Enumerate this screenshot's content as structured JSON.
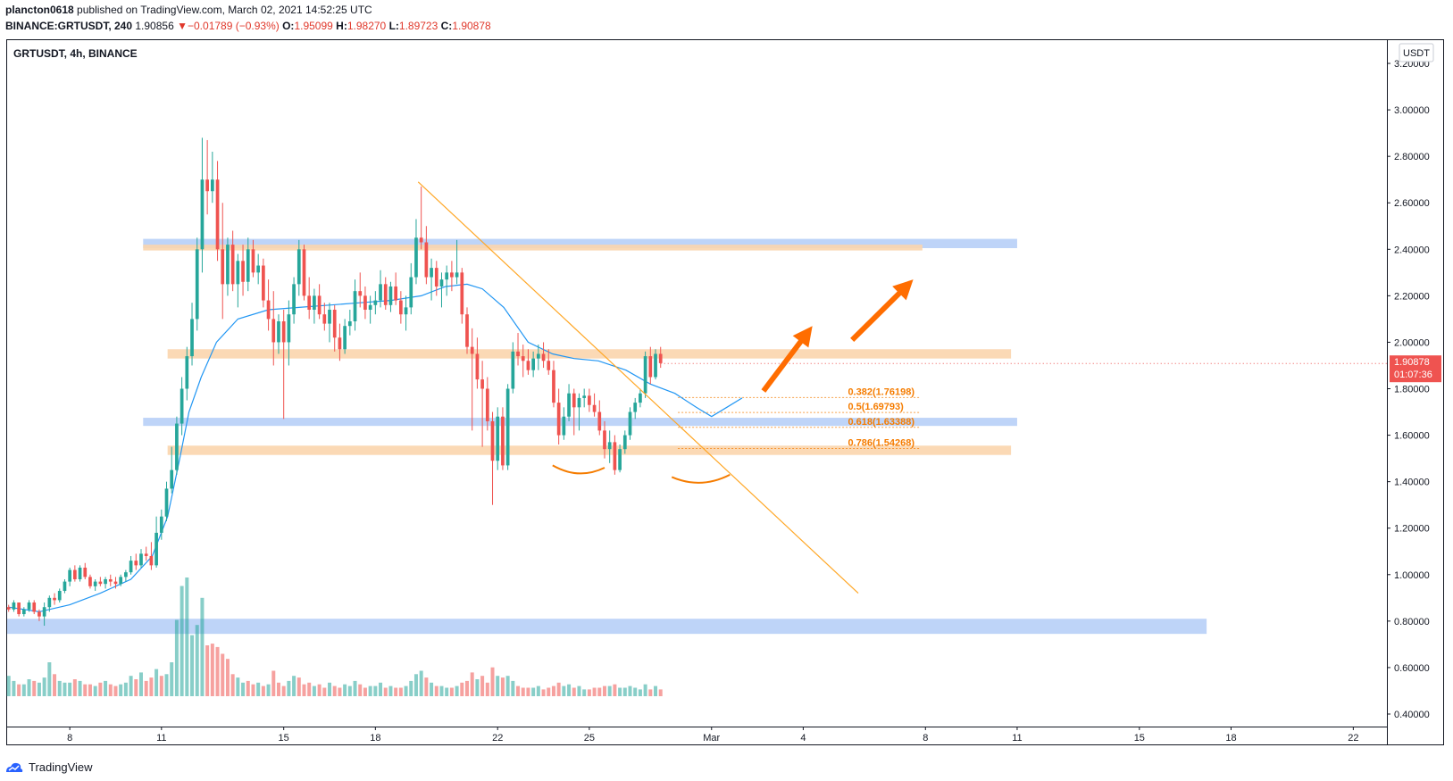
{
  "header": {
    "author": "plancton0618",
    "published_text": "published on TradingView.com, March 02, 2021 14:52:25 UTC",
    "symbol": "BINANCE:GRTUSDT, 240",
    "last": "1.90856",
    "change": "−0.01789 (−0.93%)",
    "o_label": "O:",
    "o_value": "1.95099",
    "h_label": "H:",
    "h_value": "1.98270",
    "l_label": "L:",
    "l_value": "1.89723",
    "c_label": "C:",
    "c_value": "1.90878"
  },
  "chart_title": "GRTUSDT, 4h, BINANCE",
  "currency_button": "USDT",
  "price_tag": {
    "price": "1.90878",
    "countdown": "01:07:36"
  },
  "footer": {
    "brand": "TradingView"
  },
  "colors": {
    "up": "#26a69a",
    "down": "#ef5350",
    "ma": "#2196f3",
    "blue_zone": "#b3cdf7",
    "orange_zone": "#fbd5ad",
    "fib": "#f57c00",
    "arrow": "#ff6d00",
    "trendline": "#ffa726"
  },
  "chart_data": {
    "type": "candlestick",
    "title": "GRTUSDT, 4h, BINANCE",
    "ylim": [
      0.35,
      3.3
    ],
    "y_ticks": [
      "3.20000",
      "3.00000",
      "2.80000",
      "2.60000",
      "2.40000",
      "2.20000",
      "2.00000",
      "1.80000",
      "1.60000",
      "1.40000",
      "1.20000",
      "1.00000",
      "0.80000",
      "0.60000",
      "0.40000"
    ],
    "y_tick_values": [
      3.2,
      3.0,
      2.8,
      2.6,
      2.4,
      2.2,
      2.0,
      1.8,
      1.6,
      1.4,
      1.2,
      1.0,
      0.8,
      0.6,
      0.4
    ],
    "x_ticks": [
      "8",
      "11",
      "15",
      "18",
      "22",
      "25",
      "Mar",
      "4",
      "8",
      "11",
      "15",
      "18",
      "22"
    ],
    "x_tick_days": [
      8,
      11,
      15,
      18,
      22,
      25,
      29,
      32,
      36,
      39,
      43,
      46,
      50
    ],
    "x_range_days": [
      5.95,
      51.1
    ],
    "series_start_day": 6.0,
    "candles": [
      [
        0.86,
        0.87,
        0.84,
        0.85
      ],
      [
        0.85,
        0.89,
        0.84,
        0.88
      ],
      [
        0.88,
        0.88,
        0.82,
        0.83
      ],
      [
        0.83,
        0.86,
        0.82,
        0.85
      ],
      [
        0.85,
        0.89,
        0.84,
        0.88
      ],
      [
        0.88,
        0.89,
        0.83,
        0.84
      ],
      [
        0.84,
        0.85,
        0.8,
        0.82
      ],
      [
        0.82,
        0.88,
        0.78,
        0.86
      ],
      [
        0.86,
        0.91,
        0.84,
        0.9
      ],
      [
        0.9,
        0.92,
        0.87,
        0.89
      ],
      [
        0.89,
        0.94,
        0.88,
        0.93
      ],
      [
        0.93,
        0.98,
        0.92,
        0.97
      ],
      [
        0.97,
        1.03,
        0.95,
        1.02
      ],
      [
        1.02,
        1.04,
        0.97,
        0.98
      ],
      [
        0.98,
        1.04,
        0.97,
        1.03
      ],
      [
        1.03,
        1.05,
        0.98,
        0.99
      ],
      [
        0.99,
        1.0,
        0.94,
        0.95
      ],
      [
        0.95,
        0.98,
        0.93,
        0.97
      ],
      [
        0.97,
        0.99,
        0.95,
        0.96
      ],
      [
        0.96,
        0.99,
        0.94,
        0.98
      ],
      [
        0.98,
        1.0,
        0.95,
        0.97
      ],
      [
        0.97,
        0.99,
        0.94,
        0.96
      ],
      [
        0.96,
        1.0,
        0.95,
        0.99
      ],
      [
        0.99,
        1.02,
        0.97,
        1.01
      ],
      [
        1.01,
        1.08,
        1.0,
        1.06
      ],
      [
        1.06,
        1.09,
        1.02,
        1.04
      ],
      [
        1.04,
        1.11,
        1.03,
        1.09
      ],
      [
        1.09,
        1.12,
        1.06,
        1.08
      ],
      [
        1.08,
        1.14,
        1.02,
        1.04
      ],
      [
        1.04,
        1.25,
        1.03,
        1.18
      ],
      [
        1.18,
        1.28,
        1.15,
        1.25
      ],
      [
        1.25,
        1.4,
        1.23,
        1.37
      ],
      [
        1.37,
        1.55,
        1.35,
        1.45
      ],
      [
        1.45,
        1.68,
        1.43,
        1.65
      ],
      [
        1.65,
        1.85,
        1.6,
        1.8
      ],
      [
        1.8,
        1.98,
        1.75,
        1.94
      ],
      [
        1.94,
        2.17,
        1.9,
        2.1
      ],
      [
        2.1,
        2.45,
        2.05,
        2.4
      ],
      [
        2.4,
        2.88,
        2.3,
        2.7
      ],
      [
        2.7,
        2.87,
        2.55,
        2.65
      ],
      [
        2.65,
        2.82,
        2.6,
        2.7
      ],
      [
        2.7,
        2.78,
        2.35,
        2.4
      ],
      [
        2.4,
        2.6,
        2.1,
        2.25
      ],
      [
        2.25,
        2.45,
        2.2,
        2.42
      ],
      [
        2.42,
        2.48,
        2.22,
        2.25
      ],
      [
        2.25,
        2.38,
        2.15,
        2.35
      ],
      [
        2.35,
        2.42,
        2.2,
        2.26
      ],
      [
        2.26,
        2.45,
        2.22,
        2.4
      ],
      [
        2.4,
        2.44,
        2.28,
        2.3
      ],
      [
        2.3,
        2.38,
        2.25,
        2.33
      ],
      [
        2.33,
        2.36,
        2.15,
        2.18
      ],
      [
        2.18,
        2.27,
        2.05,
        2.1
      ],
      [
        2.1,
        2.22,
        1.9,
        2.0
      ],
      [
        2.0,
        2.12,
        1.95,
        2.09
      ],
      [
        2.09,
        2.14,
        1.67,
        2.0
      ],
      [
        2.0,
        2.18,
        1.9,
        2.12
      ],
      [
        2.12,
        2.28,
        2.08,
        2.25
      ],
      [
        2.25,
        2.44,
        2.2,
        2.4
      ],
      [
        2.4,
        2.42,
        2.18,
        2.2
      ],
      [
        2.2,
        2.28,
        2.1,
        2.14
      ],
      [
        2.14,
        2.23,
        2.08,
        2.2
      ],
      [
        2.2,
        2.25,
        2.1,
        2.12
      ],
      [
        2.12,
        2.17,
        2.05,
        2.08
      ],
      [
        2.08,
        2.17,
        2.0,
        2.14
      ],
      [
        2.14,
        2.16,
        1.96,
        2.02
      ],
      [
        2.02,
        2.08,
        1.92,
        1.97
      ],
      [
        1.97,
        2.1,
        1.95,
        2.07
      ],
      [
        2.07,
        2.14,
        2.03,
        2.09
      ],
      [
        2.09,
        2.27,
        2.05,
        2.22
      ],
      [
        2.22,
        2.3,
        2.15,
        2.2
      ],
      [
        2.2,
        2.24,
        2.1,
        2.14
      ],
      [
        2.14,
        2.2,
        2.08,
        2.16
      ],
      [
        2.16,
        2.22,
        2.12,
        2.18
      ],
      [
        2.18,
        2.31,
        2.15,
        2.25
      ],
      [
        2.25,
        2.28,
        2.14,
        2.16
      ],
      [
        2.16,
        2.26,
        2.13,
        2.24
      ],
      [
        2.24,
        2.3,
        2.16,
        2.18
      ],
      [
        2.18,
        2.22,
        2.08,
        2.12
      ],
      [
        2.12,
        2.2,
        2.05,
        2.15
      ],
      [
        2.15,
        2.34,
        2.12,
        2.28
      ],
      [
        2.28,
        2.53,
        2.25,
        2.45
      ],
      [
        2.45,
        2.67,
        2.4,
        2.43
      ],
      [
        2.43,
        2.5,
        2.25,
        2.28
      ],
      [
        2.28,
        2.36,
        2.18,
        2.32
      ],
      [
        2.32,
        2.35,
        2.2,
        2.24
      ],
      [
        2.24,
        2.3,
        2.15,
        2.27
      ],
      [
        2.27,
        2.33,
        2.2,
        2.3
      ],
      [
        2.3,
        2.35,
        2.22,
        2.28
      ],
      [
        2.28,
        2.44,
        2.25,
        2.3
      ],
      [
        2.3,
        2.32,
        2.08,
        2.12
      ],
      [
        2.12,
        2.15,
        1.95,
        1.98
      ],
      [
        1.98,
        2.06,
        1.62,
        1.95
      ],
      [
        1.95,
        2.02,
        1.8,
        1.84
      ],
      [
        1.84,
        1.92,
        1.55,
        1.8
      ],
      [
        1.8,
        1.85,
        1.62,
        1.66
      ],
      [
        1.66,
        1.7,
        1.3,
        1.49
      ],
      [
        1.49,
        1.72,
        1.45,
        1.68
      ],
      [
        1.68,
        1.72,
        1.45,
        1.47
      ],
      [
        1.47,
        1.82,
        1.45,
        1.8
      ],
      [
        1.8,
        2.0,
        1.78,
        1.96
      ],
      [
        1.96,
        2.04,
        1.9,
        1.94
      ],
      [
        1.94,
        1.99,
        1.85,
        1.92
      ],
      [
        1.92,
        1.97,
        1.86,
        1.88
      ],
      [
        1.88,
        1.96,
        1.85,
        1.93
      ],
      [
        1.93,
        1.99,
        1.88,
        1.95
      ],
      [
        1.95,
        2.0,
        1.89,
        1.92
      ],
      [
        1.92,
        1.97,
        1.86,
        1.88
      ],
      [
        1.88,
        1.92,
        1.72,
        1.74
      ],
      [
        1.74,
        1.8,
        1.56,
        1.6
      ],
      [
        1.6,
        1.72,
        1.58,
        1.68
      ],
      [
        1.68,
        1.82,
        1.66,
        1.78
      ],
      [
        1.78,
        1.8,
        1.6,
        1.72
      ],
      [
        1.72,
        1.78,
        1.62,
        1.76
      ],
      [
        1.76,
        1.8,
        1.72,
        1.77
      ],
      [
        1.77,
        1.8,
        1.7,
        1.73
      ],
      [
        1.73,
        1.78,
        1.68,
        1.7
      ],
      [
        1.7,
        1.75,
        1.6,
        1.62
      ],
      [
        1.62,
        1.66,
        1.5,
        1.54
      ],
      [
        1.54,
        1.62,
        1.48,
        1.57
      ],
      [
        1.57,
        1.6,
        1.43,
        1.45
      ],
      [
        1.45,
        1.56,
        1.44,
        1.54
      ],
      [
        1.54,
        1.62,
        1.52,
        1.6
      ],
      [
        1.6,
        1.72,
        1.58,
        1.7
      ],
      [
        1.7,
        1.76,
        1.67,
        1.74
      ],
      [
        1.74,
        1.8,
        1.72,
        1.78
      ],
      [
        1.78,
        1.96,
        1.76,
        1.94
      ],
      [
        1.94,
        1.98,
        1.82,
        1.85
      ],
      [
        1.85,
        1.97,
        1.84,
        1.95
      ],
      [
        1.95,
        1.98,
        1.89,
        1.91
      ]
    ],
    "ma": [
      [
        6.0,
        0.86
      ],
      [
        7.0,
        0.84
      ],
      [
        8.0,
        0.87
      ],
      [
        9.0,
        0.92
      ],
      [
        10.0,
        0.98
      ],
      [
        10.7,
        1.08
      ],
      [
        11.2,
        1.25
      ],
      [
        11.6,
        1.5
      ],
      [
        11.9,
        1.7
      ],
      [
        12.3,
        1.85
      ],
      [
        12.8,
        2.0
      ],
      [
        13.5,
        2.1
      ],
      [
        14.5,
        2.14
      ],
      [
        15.5,
        2.15
      ],
      [
        16.5,
        2.16
      ],
      [
        17.5,
        2.17
      ],
      [
        18.5,
        2.18
      ],
      [
        19.5,
        2.2
      ],
      [
        20.3,
        2.24
      ],
      [
        21.0,
        2.25
      ],
      [
        21.5,
        2.23
      ],
      [
        22.2,
        2.15
      ],
      [
        23.0,
        2.0
      ],
      [
        23.8,
        1.95
      ],
      [
        24.5,
        1.93
      ],
      [
        25.3,
        1.92
      ],
      [
        26.2,
        1.88
      ],
      [
        27.0,
        1.82
      ],
      [
        27.8,
        1.78
      ],
      [
        28.5,
        1.72
      ],
      [
        29.0,
        1.68
      ],
      [
        29.5,
        1.72
      ],
      [
        30.0,
        1.76
      ]
    ],
    "volume": [
      [
        0.12,
        1
      ],
      [
        0.09,
        1
      ],
      [
        0.07,
        0
      ],
      [
        0.07,
        1
      ],
      [
        0.1,
        1
      ],
      [
        0.09,
        0
      ],
      [
        0.08,
        1
      ],
      [
        0.11,
        1
      ],
      [
        0.2,
        1
      ],
      [
        0.13,
        0
      ],
      [
        0.09,
        1
      ],
      [
        0.08,
        1
      ],
      [
        0.08,
        1
      ],
      [
        0.1,
        0
      ],
      [
        0.09,
        1
      ],
      [
        0.07,
        0
      ],
      [
        0.07,
        0
      ],
      [
        0.06,
        1
      ],
      [
        0.08,
        0
      ],
      [
        0.09,
        1
      ],
      [
        0.07,
        0
      ],
      [
        0.06,
        0
      ],
      [
        0.07,
        1
      ],
      [
        0.08,
        1
      ],
      [
        0.12,
        1
      ],
      [
        0.1,
        0
      ],
      [
        0.14,
        1
      ],
      [
        0.09,
        0
      ],
      [
        0.11,
        0
      ],
      [
        0.16,
        1
      ],
      [
        0.12,
        0
      ],
      [
        0.13,
        1
      ],
      [
        0.2,
        1
      ],
      [
        0.45,
        1
      ],
      [
        0.65,
        1
      ],
      [
        0.7,
        1
      ],
      [
        0.36,
        1
      ],
      [
        0.42,
        1
      ],
      [
        0.58,
        1
      ],
      [
        0.3,
        0
      ],
      [
        0.31,
        0
      ],
      [
        0.29,
        0
      ],
      [
        0.25,
        0
      ],
      [
        0.22,
        0
      ],
      [
        0.13,
        0
      ],
      [
        0.11,
        1
      ],
      [
        0.08,
        1
      ],
      [
        0.09,
        0
      ],
      [
        0.07,
        0
      ],
      [
        0.08,
        1
      ],
      [
        0.06,
        0
      ],
      [
        0.07,
        1
      ],
      [
        0.15,
        0
      ],
      [
        0.08,
        0
      ],
      [
        0.06,
        0
      ],
      [
        0.09,
        1
      ],
      [
        0.12,
        1
      ],
      [
        0.11,
        0
      ],
      [
        0.07,
        0
      ],
      [
        0.08,
        0
      ],
      [
        0.06,
        1
      ],
      [
        0.07,
        0
      ],
      [
        0.05,
        0
      ],
      [
        0.08,
        1
      ],
      [
        0.06,
        0
      ],
      [
        0.05,
        0
      ],
      [
        0.07,
        1
      ],
      [
        0.06,
        1
      ],
      [
        0.09,
        1
      ],
      [
        0.07,
        0
      ],
      [
        0.05,
        0
      ],
      [
        0.06,
        1
      ],
      [
        0.06,
        1
      ],
      [
        0.08,
        1
      ],
      [
        0.05,
        0
      ],
      [
        0.06,
        1
      ],
      [
        0.05,
        0
      ],
      [
        0.05,
        0
      ],
      [
        0.06,
        1
      ],
      [
        0.09,
        1
      ],
      [
        0.13,
        1
      ],
      [
        0.15,
        1
      ],
      [
        0.11,
        0
      ],
      [
        0.08,
        1
      ],
      [
        0.06,
        0
      ],
      [
        0.06,
        1
      ],
      [
        0.05,
        1
      ],
      [
        0.05,
        0
      ],
      [
        0.06,
        1
      ],
      [
        0.08,
        0
      ],
      [
        0.09,
        0
      ],
      [
        0.14,
        0
      ],
      [
        0.1,
        1
      ],
      [
        0.12,
        0
      ],
      [
        0.08,
        0
      ],
      [
        0.17,
        0
      ],
      [
        0.12,
        1
      ],
      [
        0.11,
        0
      ],
      [
        0.12,
        1
      ],
      [
        0.09,
        1
      ],
      [
        0.06,
        0
      ],
      [
        0.05,
        0
      ],
      [
        0.05,
        0
      ],
      [
        0.05,
        1
      ],
      [
        0.06,
        1
      ],
      [
        0.04,
        0
      ],
      [
        0.05,
        0
      ],
      [
        0.06,
        0
      ],
      [
        0.08,
        0
      ],
      [
        0.06,
        1
      ],
      [
        0.07,
        1
      ],
      [
        0.05,
        0
      ],
      [
        0.06,
        1
      ],
      [
        0.04,
        1
      ],
      [
        0.04,
        0
      ],
      [
        0.05,
        0
      ],
      [
        0.05,
        0
      ],
      [
        0.06,
        0
      ],
      [
        0.06,
        1
      ],
      [
        0.07,
        0
      ],
      [
        0.05,
        1
      ],
      [
        0.05,
        1
      ],
      [
        0.06,
        1
      ],
      [
        0.05,
        1
      ],
      [
        0.04,
        1
      ],
      [
        0.07,
        1
      ],
      [
        0.04,
        0
      ],
      [
        0.06,
        1
      ],
      [
        0.04,
        0
      ]
    ],
    "zones": [
      {
        "kind": "blue",
        "y": [
          2.405,
          2.445
        ],
        "x": [
          10.4,
          39.0
        ]
      },
      {
        "kind": "orange",
        "y": [
          2.395,
          2.42
        ],
        "x": [
          10.4,
          35.9
        ]
      },
      {
        "kind": "orange",
        "y": [
          1.93,
          1.97
        ],
        "x": [
          11.2,
          38.8
        ]
      },
      {
        "kind": "blue",
        "y": [
          1.64,
          1.675
        ],
        "x": [
          10.4,
          39.0
        ]
      },
      {
        "kind": "orange",
        "y": [
          1.515,
          1.555
        ],
        "x": [
          11.2,
          38.8
        ]
      },
      {
        "kind": "blue",
        "y": [
          0.745,
          0.81
        ],
        "x": [
          5.95,
          45.2
        ]
      }
    ],
    "trendline": [
      [
        19.4,
        2.69
      ],
      [
        33.8,
        0.92
      ]
    ],
    "fib_levels": [
      {
        "label": "0.382(1.76198)",
        "value": 1.76198
      },
      {
        "label": "0.5(1.69793)",
        "value": 1.69793
      },
      {
        "label": "0.618(1.63388)",
        "value": 1.63388
      },
      {
        "label": "0.786(1.54268)",
        "value": 1.54268
      }
    ],
    "fib_x": [
      27.9,
      35.8
    ],
    "arcs": [
      [
        [
          23.8,
          1.47
        ],
        [
          25.5,
          1.46
        ]
      ],
      [
        [
          27.7,
          1.42
        ],
        [
          29.6,
          1.43
        ]
      ]
    ],
    "arrows": [
      [
        [
          30.7,
          1.79
        ],
        [
          32.3,
          2.07
        ]
      ],
      [
        [
          33.6,
          2.01
        ],
        [
          35.6,
          2.27
        ]
      ]
    ],
    "current_price": 1.90878
  }
}
